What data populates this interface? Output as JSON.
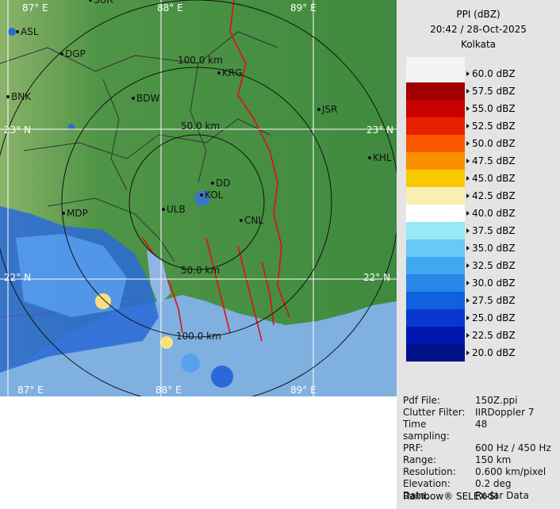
{
  "header": {
    "title": "PPI (dBZ)",
    "datetime": "20:42 / 28-Oct-2025",
    "station": "Kolkata"
  },
  "legend": {
    "labels": [
      "60.0 dBZ",
      "57.5 dBZ",
      "55.0 dBZ",
      "52.5 dBZ",
      "50.0 dBZ",
      "47.5 dBZ",
      "45.0 dBZ",
      "42.5 dBZ",
      "40.0 dBZ",
      "37.5 dBZ",
      "35.0 dBZ",
      "32.5 dBZ",
      "30.0 dBZ",
      "27.5 dBZ",
      "25.0 dBZ",
      "22.5 dBZ",
      "20.0 dBZ"
    ],
    "colors": [
      "#a00000",
      "#c80000",
      "#e82000",
      "#f85800",
      "#f89000",
      "#f8c800",
      "#f8f0b0",
      "#ffffff",
      "#98e8f8",
      "#68c8f8",
      "#40a8f0",
      "#2888e8",
      "#1060e0",
      "#0838d0",
      "#0018b0",
      "#001088"
    ]
  },
  "info": {
    "rows": [
      [
        "Pdf File:",
        "150Z.ppi"
      ],
      [
        "Clutter Filter:",
        "IIRDoppler 7"
      ],
      [
        "Time sampling:",
        "48"
      ],
      [
        "PRF:",
        "600 Hz / 450 Hz"
      ],
      [
        "Range:",
        "150 km"
      ],
      [
        "Resolution:",
        "0.600 km/pixel"
      ],
      [
        "Elevation:",
        "0.2 deg"
      ],
      [
        "Data:",
        "Radar Data"
      ]
    ],
    "footer": "Rainbow® SELEX-SI"
  },
  "map": {
    "grid_labels": [
      "87° E",
      "88° E",
      "89° E",
      "23° N",
      "23° N",
      "22° N",
      "22° N",
      "87° E",
      "88° E",
      "89° E"
    ],
    "range_labels": [
      "100.0 km",
      "50.0 km",
      "50.0 km",
      "100.0 km"
    ],
    "places": [
      "SUR",
      "ASL",
      "DGP",
      "BNK",
      "BDW",
      "KRG",
      "JSR",
      "KHL",
      "MDP",
      "DD",
      "KOL",
      "ULB",
      "CNL"
    ]
  }
}
